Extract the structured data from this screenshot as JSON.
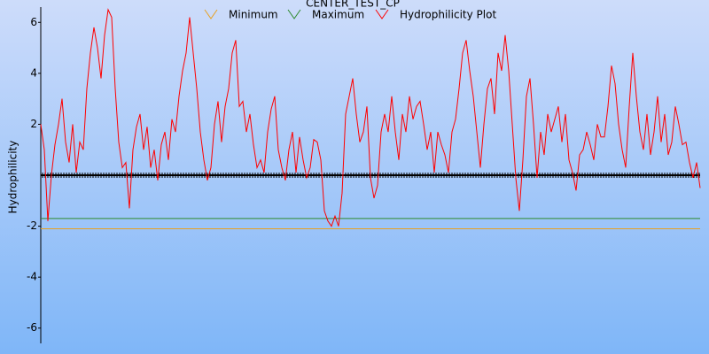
{
  "chart_data": {
    "type": "line",
    "title": "CENTER_TEST_CP",
    "y_label": "Hydrophilicity",
    "ylim": [
      -6.6,
      6.6
    ],
    "yticks": [
      -6,
      -4,
      -2,
      2,
      4,
      6
    ],
    "series": [
      {
        "name": "Minimum",
        "color": "#e8a020",
        "values": [
          -2.1,
          -2.1
        ]
      },
      {
        "name": "Maximum",
        "color": "#2e8b2e",
        "values": [
          -1.7,
          -1.7
        ]
      },
      {
        "name": "Hydrophilicity Plot",
        "color": "#ff0000",
        "values": [
          2.0,
          1.0,
          -1.8,
          0,
          1.2,
          2.0,
          3.0,
          1.3,
          0.5,
          2.0,
          0.1,
          1.3,
          1.0,
          3.4,
          4.8,
          5.8,
          5.0,
          3.8,
          5.5,
          6.5,
          6.2,
          3.4,
          1.3,
          0.3,
          0.5,
          -1.3,
          1.0,
          1.9,
          2.4,
          1.0,
          1.9,
          0.3,
          1.0,
          -0.2,
          1.2,
          1.7,
          0.6,
          2.2,
          1.7,
          3.1,
          4.1,
          4.8,
          6.2,
          4.8,
          3.4,
          1.7,
          0.6,
          -0.2,
          0.3,
          2.0,
          2.9,
          1.3,
          2.7,
          3.4,
          4.8,
          5.3,
          2.7,
          2.9,
          1.7,
          2.4,
          1.2,
          0.3,
          0.6,
          0.1,
          1.7,
          2.6,
          3.1,
          1.0,
          0.3,
          -0.2,
          1.0,
          1.7,
          0.1,
          1.5,
          0.6,
          -0.1,
          0.3,
          1.4,
          1.3,
          0.6,
          -1.4,
          -1.8,
          -2.0,
          -1.6,
          -2.0,
          -0.7,
          2.4,
          3.1,
          3.8,
          2.4,
          1.3,
          1.7,
          2.7,
          -0.1,
          -0.9,
          -0.4,
          1.7,
          2.4,
          1.7,
          3.1,
          1.7,
          0.6,
          2.4,
          1.7,
          3.1,
          2.2,
          2.7,
          2.9,
          2.0,
          1.0,
          1.7,
          0.1,
          1.7,
          1.2,
          0.8,
          0.1,
          1.7,
          2.2,
          3.4,
          4.8,
          5.3,
          4.1,
          3.1,
          1.7,
          0.3,
          2.0,
          3.4,
          3.8,
          2.4,
          4.8,
          4.1,
          5.5,
          4.1,
          2.0,
          -0.1,
          -1.4,
          0.6,
          3.1,
          3.8,
          2.0,
          -0.1,
          1.7,
          0.8,
          2.4,
          1.7,
          2.2,
          2.7,
          1.3,
          2.4,
          0.6,
          0.1,
          -0.6,
          0.8,
          1.0,
          1.7,
          1.2,
          0.6,
          2.0,
          1.5,
          1.5,
          2.7,
          4.3,
          3.6,
          2.0,
          1.0,
          0.3,
          2.7,
          4.8,
          3.1,
          1.7,
          1.0,
          2.4,
          0.8,
          1.7,
          3.1,
          1.3,
          2.4,
          0.8,
          1.3,
          2.7,
          2.0,
          1.2,
          1.3,
          0.5,
          -0.1,
          0.5,
          -0.5
        ]
      }
    ]
  }
}
